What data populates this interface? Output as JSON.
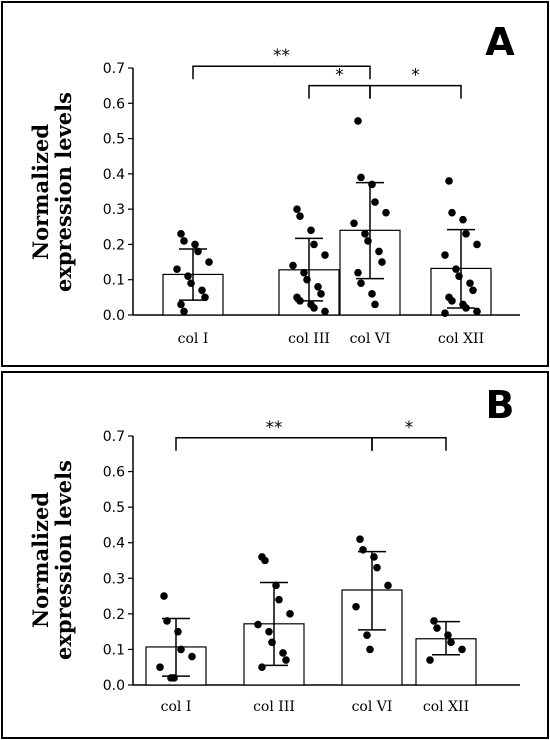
{
  "chart_data": [
    {
      "type": "bar",
      "panel_letter": "A",
      "ylabel": [
        "Normalized",
        "expression levels"
      ],
      "ylim": [
        0,
        0.7
      ],
      "yticks": [
        "0.0",
        "0.1",
        "0.2",
        "0.3",
        "0.4",
        "0.5",
        "0.6",
        "0.7"
      ],
      "categories": [
        "col I",
        "col III",
        "col VI",
        "col XII"
      ],
      "values": [
        0.115,
        0.128,
        0.24,
        0.132
      ],
      "error_low": [
        0.042,
        0.04,
        0.103,
        0.02
      ],
      "error_high": [
        0.187,
        0.217,
        0.375,
        0.242
      ],
      "points": [
        [
          0.23,
          0.21,
          0.2,
          0.18,
          0.15,
          0.13,
          0.11,
          0.09,
          0.07,
          0.05,
          0.03,
          0.01
        ],
        [
          0.3,
          0.28,
          0.24,
          0.2,
          0.17,
          0.14,
          0.12,
          0.1,
          0.08,
          0.06,
          0.05,
          0.04,
          0.03,
          0.02,
          0.01
        ],
        [
          0.55,
          0.39,
          0.37,
          0.32,
          0.29,
          0.26,
          0.23,
          0.21,
          0.18,
          0.15,
          0.12,
          0.09,
          0.06,
          0.03
        ],
        [
          0.38,
          0.29,
          0.27,
          0.23,
          0.2,
          0.17,
          0.13,
          0.11,
          0.09,
          0.07,
          0.05,
          0.04,
          0.03,
          0.02,
          0.01,
          0.005
        ]
      ],
      "significance": [
        {
          "from": 0,
          "to": 2,
          "label": "**",
          "level": 0.705
        },
        {
          "from": 1,
          "to": 2,
          "label": "*",
          "level": 0.65
        },
        {
          "from": 2,
          "to": 3,
          "label": "*",
          "level": 0.65
        }
      ]
    },
    {
      "type": "bar",
      "panel_letter": "B",
      "ylabel": [
        "Normalized",
        "expression levels"
      ],
      "ylim": [
        0,
        0.7
      ],
      "yticks": [
        "0.0",
        "0.1",
        "0.2",
        "0.3",
        "0.4",
        "0.5",
        "0.6",
        "0.7"
      ],
      "categories": [
        "col I",
        "col III",
        "col VI",
        "col XII"
      ],
      "values": [
        0.107,
        0.172,
        0.267,
        0.13
      ],
      "error_low": [
        0.025,
        0.055,
        0.155,
        0.085
      ],
      "error_high": [
        0.187,
        0.288,
        0.375,
        0.178
      ],
      "points": [
        [
          0.25,
          0.18,
          0.15,
          0.1,
          0.08,
          0.05,
          0.02,
          0.02
        ],
        [
          0.36,
          0.35,
          0.28,
          0.24,
          0.2,
          0.17,
          0.15,
          0.12,
          0.09,
          0.07,
          0.05
        ],
        [
          0.41,
          0.38,
          0.36,
          0.33,
          0.28,
          0.22,
          0.14,
          0.1
        ],
        [
          0.18,
          0.16,
          0.14,
          0.12,
          0.1,
          0.07
        ]
      ],
      "significance": [
        {
          "from": 0,
          "to": 2,
          "label": "**",
          "level": 0.695
        },
        {
          "from": 2,
          "to": 3,
          "label": "*",
          "level": 0.695
        }
      ]
    }
  ]
}
